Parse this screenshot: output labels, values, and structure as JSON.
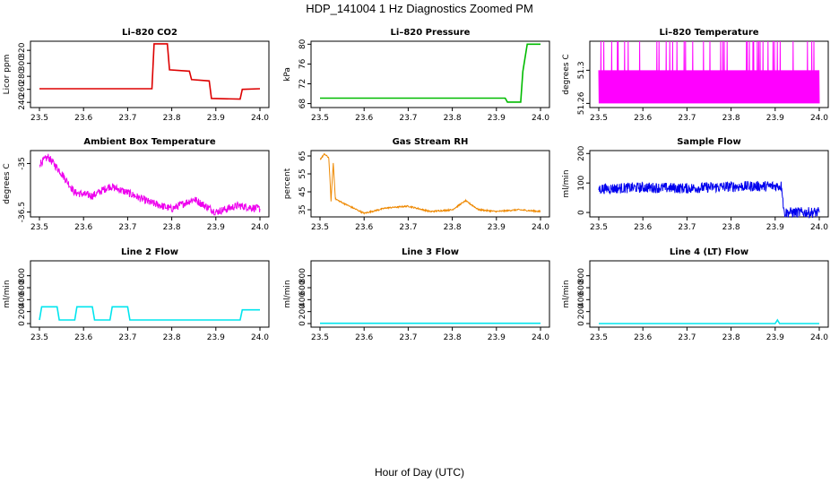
{
  "figure": {
    "title": "HDP_141004  1 Hz Diagnostics Zoomed PM",
    "xlabel": "Hour of Day (UTC)"
  },
  "chart_data": [
    {
      "type": "line",
      "title": "Li–820 CO2",
      "ylabel": "Licor ppm",
      "color": "#dd0000",
      "xlim": [
        23.5,
        24.0
      ],
      "ylim": [
        232,
        334
      ],
      "yticks": [
        240,
        260,
        280,
        300,
        320
      ],
      "xticks": [
        "23.5",
        "23.6",
        "23.7",
        "23.8",
        "23.9",
        "24.0"
      ],
      "series": [
        {
          "name": "CO2",
          "x": [
            23.5,
            23.755,
            23.76,
            23.79,
            23.795,
            23.84,
            23.845,
            23.885,
            23.89,
            23.955,
            23.96,
            24.0
          ],
          "y": [
            261,
            261,
            330,
            330,
            290,
            288,
            275,
            273,
            246,
            245,
            260,
            261
          ]
        }
      ]
    },
    {
      "type": "line",
      "title": "Li–820 Pressure",
      "ylabel": "kPa",
      "color": "#00bb00",
      "xlim": [
        23.5,
        24.0
      ],
      "ylim": [
        67.2,
        80.6
      ],
      "yticks": [
        68,
        72,
        76,
        80
      ],
      "xticks": [
        "23.5",
        "23.6",
        "23.7",
        "23.8",
        "23.9",
        "24.0"
      ],
      "series": [
        {
          "name": "Pressure",
          "x": [
            23.5,
            23.92,
            23.925,
            23.955,
            23.96,
            23.97,
            24.0
          ],
          "y": [
            69.1,
            69.1,
            68.3,
            68.3,
            74.5,
            80.0,
            80.0
          ]
        }
      ]
    },
    {
      "type": "line",
      "title": "Li–820 Temperature",
      "ylabel": "degrees C",
      "color": "#ff00ff",
      "xlim": [
        23.5,
        24.0
      ],
      "ylim": [
        51.255,
        51.335
      ],
      "yticks": [
        51.26,
        51.3
      ],
      "xticks": [
        "23.5",
        "23.6",
        "23.7",
        "23.8",
        "23.9",
        "24.0"
      ],
      "series": [
        {
          "name": "Temperature",
          "x": [
            23.5,
            24.0
          ],
          "y": [
            51.3,
            51.3
          ],
          "band": [
            51.26,
            51.3,
            51.335
          ]
        }
      ]
    },
    {
      "type": "line",
      "title": "Ambient Box Temperature",
      "ylabel": "degrees C",
      "color": "#ee00ee",
      "xlim": [
        23.5,
        24.0
      ],
      "ylim": [
        -36.65,
        -34.6
      ],
      "yticks": [
        -35.0,
        -36.5
      ],
      "xticks": [
        "23.5",
        "23.6",
        "23.7",
        "23.8",
        "23.9",
        "24.0"
      ],
      "series": [
        {
          "name": "Ambient",
          "x": [
            23.5,
            23.52,
            23.55,
            23.58,
            23.62,
            23.66,
            23.7,
            23.75,
            23.8,
            23.85,
            23.9,
            23.95,
            24.0
          ],
          "y": [
            -35.0,
            -34.8,
            -35.3,
            -35.9,
            -36.0,
            -35.7,
            -35.9,
            -36.2,
            -36.4,
            -36.1,
            -36.5,
            -36.3,
            -36.4
          ]
        }
      ]
    },
    {
      "type": "line",
      "title": "Gas Stream RH",
      "ylabel": "percent",
      "color": "#ee8800",
      "xlim": [
        23.5,
        24.0
      ],
      "ylim": [
        31,
        68
      ],
      "yticks": [
        35,
        45,
        55,
        65
      ],
      "xticks": [
        "23.5",
        "23.6",
        "23.7",
        "23.8",
        "23.9",
        "24.0"
      ],
      "series": [
        {
          "name": "RH",
          "x": [
            23.5,
            23.51,
            23.52,
            23.525,
            23.53,
            23.535,
            23.55,
            23.6,
            23.65,
            23.7,
            23.75,
            23.8,
            23.83,
            23.86,
            23.9,
            23.95,
            24.0
          ],
          "y": [
            63,
            66,
            64,
            40,
            61,
            41,
            39,
            33,
            36,
            37,
            34,
            35,
            40,
            35,
            34,
            35,
            34
          ]
        }
      ]
    },
    {
      "type": "line",
      "title": "Sample Flow",
      "ylabel": "ml/min",
      "color": "#0000ee",
      "xlim": [
        23.5,
        24.0
      ],
      "ylim": [
        -15,
        210
      ],
      "yticks": [
        0,
        100,
        200
      ],
      "xticks": [
        "23.5",
        "23.6",
        "23.7",
        "23.8",
        "23.9",
        "24.0"
      ],
      "series": [
        {
          "name": "Sample",
          "x": [
            23.5,
            23.6,
            23.7,
            23.8,
            23.915,
            23.92,
            24.0
          ],
          "y": [
            80,
            85,
            82,
            88,
            90,
            0,
            0
          ]
        }
      ]
    },
    {
      "type": "line",
      "title": "Line 2 Flow",
      "ylabel": "ml/min",
      "color": "#00e5ee",
      "xlim": [
        23.5,
        24.0
      ],
      "ylim": [
        -60,
        1050
      ],
      "yticks": [
        0,
        200,
        400,
        600,
        800
      ],
      "xticks": [
        "23.5",
        "23.6",
        "23.7",
        "23.8",
        "23.9",
        "24.0"
      ],
      "series": [
        {
          "name": "Line 2",
          "x": [
            23.5,
            23.505,
            23.54,
            23.545,
            23.58,
            23.585,
            23.62,
            23.625,
            23.66,
            23.665,
            23.7,
            23.705,
            23.955,
            23.96,
            24.0
          ],
          "y": [
            60,
            280,
            280,
            60,
            60,
            280,
            280,
            60,
            60,
            280,
            280,
            60,
            60,
            230,
            230
          ]
        }
      ]
    },
    {
      "type": "line",
      "title": "Line 3 Flow",
      "ylabel": "ml/min",
      "color": "#00e5ee",
      "xlim": [
        23.5,
        24.0
      ],
      "ylim": [
        -60,
        1050
      ],
      "yticks": [
        0,
        200,
        400,
        600,
        800
      ],
      "xticks": [
        "23.5",
        "23.6",
        "23.7",
        "23.8",
        "23.9",
        "24.0"
      ],
      "series": [
        {
          "name": "Line 3",
          "x": [
            23.5,
            24.0
          ],
          "y": [
            5,
            5
          ]
        }
      ]
    },
    {
      "type": "line",
      "title": "Line 4 (LT) Flow",
      "ylabel": "ml/min",
      "color": "#00e5ee",
      "xlim": [
        23.5,
        24.0
      ],
      "ylim": [
        -60,
        1050
      ],
      "yticks": [
        0,
        200,
        400,
        600,
        800
      ],
      "xticks": [
        "23.5",
        "23.6",
        "23.7",
        "23.8",
        "23.9",
        "24.0"
      ],
      "series": [
        {
          "name": "Line 4",
          "x": [
            23.5,
            23.9,
            23.905,
            23.91,
            24.0
          ],
          "y": [
            0,
            0,
            60,
            0,
            0
          ]
        }
      ]
    }
  ]
}
